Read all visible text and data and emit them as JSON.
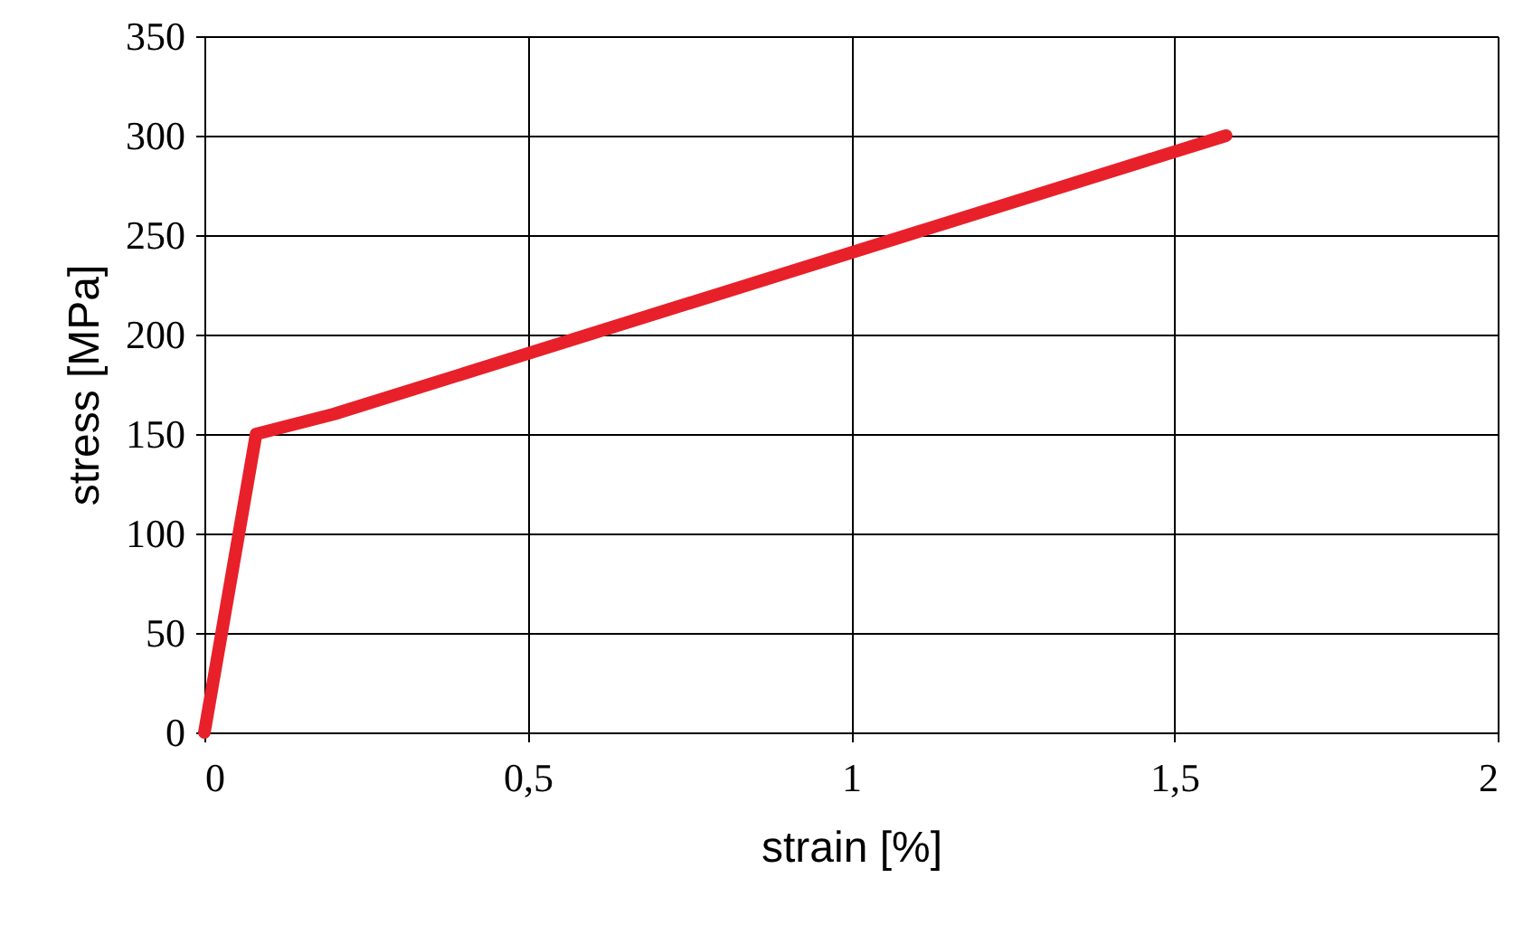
{
  "chart_data": {
    "type": "line",
    "xlabel": "strain [%]",
    "ylabel": "stress [MPa]",
    "series": [
      {
        "x": [
          0,
          0.08,
          0.2,
          1.58
        ],
        "values": [
          0,
          150,
          160,
          300
        ],
        "color": "#e8202a"
      }
    ],
    "xlim": [
      0,
      2
    ],
    "xticks": [
      0,
      {
        "value": 0.5,
        "label": "0,5"
      },
      1,
      {
        "value": 1.5,
        "label": "1,5"
      },
      2
    ],
    "ylim": [
      0,
      350
    ],
    "yticks": [
      0,
      50,
      100,
      150,
      200,
      250,
      300,
      350
    ],
    "grid": true,
    "marker": "none",
    "line_style": "solid"
  }
}
